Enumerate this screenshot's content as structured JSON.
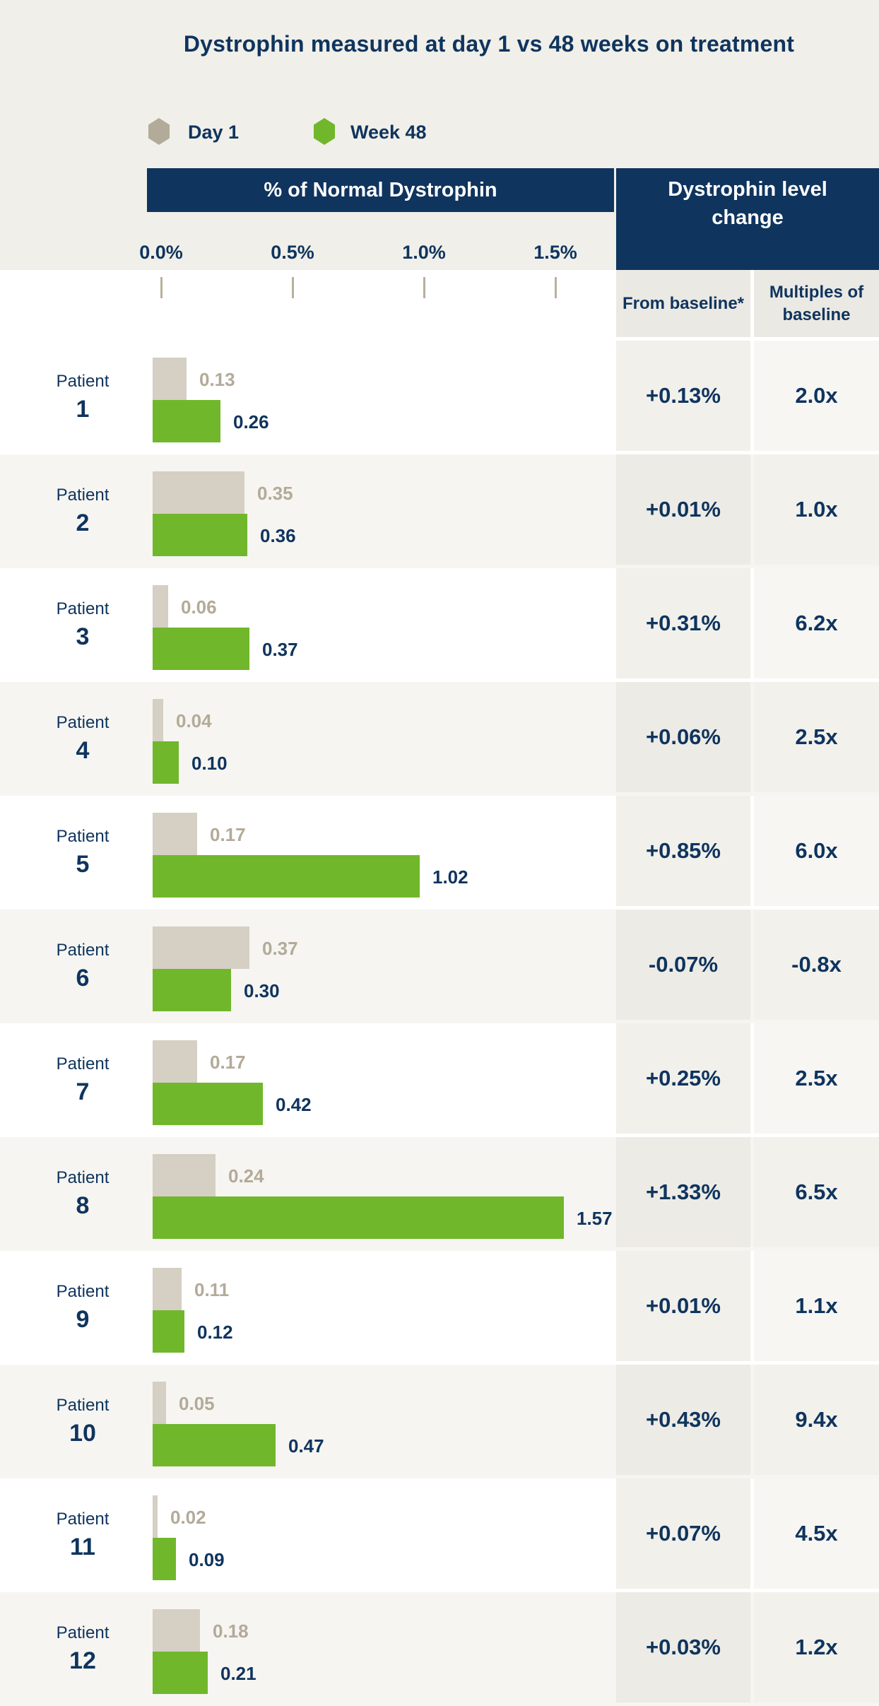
{
  "title": "Dystrophin measured at day 1 vs 48 weeks on treatment",
  "legend": {
    "day1_label": "Day 1",
    "week48_label": "Week 48"
  },
  "left_header": "% of Normal Dystrophin",
  "right_header": "Dystrophin level change",
  "table_columns": {
    "from_baseline": "From baseline*",
    "multiples": "Multiples of baseline"
  },
  "colors": {
    "navy": "#0f345e",
    "green": "#70b72c",
    "tan_bar": "#d5cfc4",
    "tan_bar_legend": "#b3ab99",
    "tan_text": "#b3aa99",
    "page_bg": "#f0efe9",
    "row_alt": "#f6f5f1",
    "subhead_bg": "#ebe9e3",
    "tick": "#b9b09d"
  },
  "chart_data": {
    "type": "bar",
    "orientation": "horizontal",
    "title": "Dystrophin measured at day 1 vs 48 weeks on treatment",
    "xlabel": "% of Normal Dystrophin",
    "axis_ticks": [
      "0.0%",
      "0.5%",
      "1.0%",
      "1.5%"
    ],
    "xlim": [
      0,
      1.5
    ],
    "row_label_word": "Patient",
    "series_names": [
      "Day 1",
      "Week 48"
    ],
    "patients": [
      {
        "number": "1",
        "day1": 0.13,
        "week48": 0.26,
        "from_baseline": "+0.13%",
        "multiples": "2.0x"
      },
      {
        "number": "2",
        "day1": 0.35,
        "week48": 0.36,
        "from_baseline": "+0.01%",
        "multiples": "1.0x"
      },
      {
        "number": "3",
        "day1": 0.06,
        "week48": 0.37,
        "from_baseline": "+0.31%",
        "multiples": "6.2x"
      },
      {
        "number": "4",
        "day1": 0.04,
        "week48": 0.1,
        "from_baseline": "+0.06%",
        "multiples": "2.5x"
      },
      {
        "number": "5",
        "day1": 0.17,
        "week48": 1.02,
        "from_baseline": "+0.85%",
        "multiples": "6.0x"
      },
      {
        "number": "6",
        "day1": 0.37,
        "week48": 0.3,
        "from_baseline": "-0.07%",
        "multiples": "-0.8x"
      },
      {
        "number": "7",
        "day1": 0.17,
        "week48": 0.42,
        "from_baseline": "+0.25%",
        "multiples": "2.5x"
      },
      {
        "number": "8",
        "day1": 0.24,
        "week48": 1.57,
        "from_baseline": "+1.33%",
        "multiples": "6.5x"
      },
      {
        "number": "9",
        "day1": 0.11,
        "week48": 0.12,
        "from_baseline": "+0.01%",
        "multiples": "1.1x"
      },
      {
        "number": "10",
        "day1": 0.05,
        "week48": 0.47,
        "from_baseline": "+0.43%",
        "multiples": "9.4x"
      },
      {
        "number": "11",
        "day1": 0.02,
        "week48": 0.09,
        "from_baseline": "+0.07%",
        "multiples": "4.5x"
      },
      {
        "number": "12",
        "day1": 0.18,
        "week48": 0.21,
        "from_baseline": "+0.03%",
        "multiples": "1.2x"
      }
    ]
  }
}
